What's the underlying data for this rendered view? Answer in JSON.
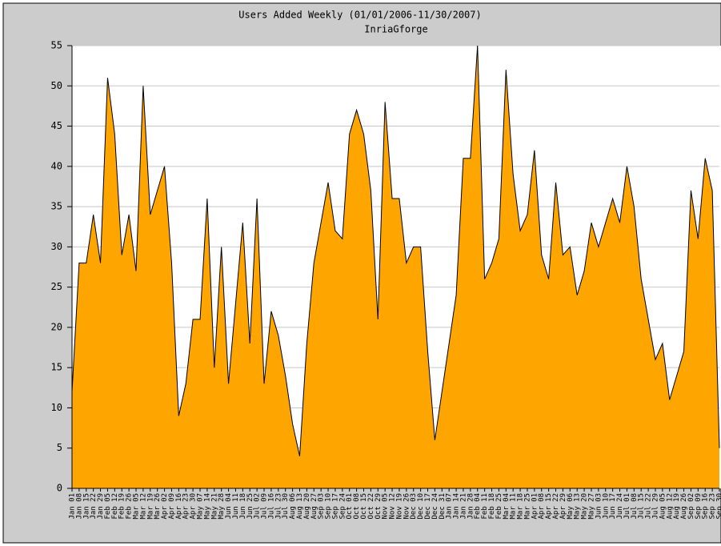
{
  "chart_data": {
    "type": "area",
    "title": "Users Added Weekly (01/01/2006-11/30/2007)",
    "subtitle": "InriaGforge",
    "categories": [
      "Jan 01",
      "Jan 08",
      "Jan 15",
      "Jan 22",
      "Jan 29",
      "Feb 05",
      "Feb 12",
      "Feb 19",
      "Feb 26",
      "Mar 05",
      "Mar 12",
      "Mar 19",
      "Mar 26",
      "Apr 02",
      "Apr 09",
      "Apr 16",
      "Apr 23",
      "Apr 30",
      "May 07",
      "May 14",
      "May 21",
      "May 28",
      "Jun 04",
      "Jun 11",
      "Jun 18",
      "Jun 25",
      "Jul 02",
      "Jul 09",
      "Jul 16",
      "Jul 23",
      "Jul 30",
      "Aug 06",
      "Aug 13",
      "Aug 20",
      "Aug 27",
      "Sep 03",
      "Sep 10",
      "Sep 17",
      "Sep 24",
      "Oct 01",
      "Oct 08",
      "Oct 15",
      "Oct 22",
      "Oct 29",
      "Nov 05",
      "Nov 12",
      "Nov 19",
      "Nov 26",
      "Dec 03",
      "Dec 10",
      "Dec 17",
      "Dec 24",
      "Dec 31",
      "Jan 07",
      "Jan 14",
      "Jan 21",
      "Jan 28",
      "Feb 04",
      "Feb 11",
      "Feb 18",
      "Feb 25",
      "Mar 04",
      "Mar 11",
      "Mar 18",
      "Mar 25",
      "Apr 01",
      "Apr 08",
      "Apr 15",
      "Apr 22",
      "Apr 29",
      "May 06",
      "May 13",
      "May 20",
      "May 27",
      "Jun 03",
      "Jun 10",
      "Jun 17",
      "Jun 24",
      "Jul 01",
      "Jul 08",
      "Jul 15",
      "Jul 22",
      "Jul 29",
      "Aug 05",
      "Aug 12",
      "Aug 19",
      "Aug 26",
      "Sep 02",
      "Sep 09",
      "Sep 16",
      "Sep 23",
      "Sep 30"
    ],
    "values": [
      12,
      28,
      28,
      34,
      28,
      51,
      44,
      29,
      34,
      27,
      50,
      34,
      37,
      40,
      28,
      9,
      13,
      21,
      21,
      36,
      15,
      30,
      13,
      23,
      33,
      18,
      36,
      13,
      22,
      19,
      14,
      8,
      4,
      18,
      28,
      33,
      38,
      32,
      31,
      44,
      47,
      44,
      37,
      21,
      48,
      36,
      36,
      28,
      30,
      30,
      17,
      6,
      12,
      18,
      24,
      41,
      41,
      55,
      26,
      28,
      31,
      52,
      39,
      32,
      34,
      42,
      29,
      26,
      38,
      29,
      30,
      24,
      27,
      33,
      30,
      33,
      36,
      33,
      40,
      35,
      26,
      21,
      16,
      18,
      11,
      14,
      17,
      37,
      31,
      41,
      37,
      5
    ],
    "color": "#ffa500",
    "ylim": [
      0,
      55
    ],
    "yticks": [
      0,
      5,
      10,
      15,
      20,
      25,
      30,
      35,
      40,
      45,
      50,
      55
    ],
    "grid": true
  }
}
